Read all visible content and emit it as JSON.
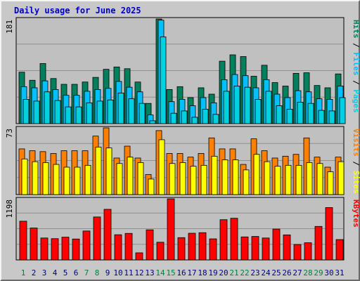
{
  "title": "Daily usage for June 2025",
  "colors": {
    "hits": "#00805c",
    "files": "#00c0ff",
    "pages": "#00d0e0",
    "visits": "#ff8000",
    "sites": "#ffff00",
    "kbytes": "#ff0000",
    "plot_bg": "#c0c0c0",
    "grid": "#909090",
    "weekend_label": "#008040",
    "weekday_label": "#000080"
  },
  "chart_data": [
    {
      "type": "bar",
      "name": "hits-files-pages",
      "categories": [
        "1",
        "2",
        "3",
        "4",
        "5",
        "6",
        "7",
        "8",
        "9",
        "10",
        "11",
        "12",
        "13",
        "14",
        "15",
        "16",
        "17",
        "18",
        "19",
        "20",
        "21",
        "22",
        "23",
        "24",
        "25",
        "26",
        "27",
        "28",
        "29",
        "30",
        "31"
      ],
      "weekend_days": [
        "1",
        "7",
        "8",
        "14",
        "15",
        "21",
        "22",
        "28",
        "29"
      ],
      "ymax_label": "181",
      "ylim": [
        0,
        181
      ],
      "legend": [
        "Hits",
        "Files",
        "Pages"
      ],
      "series": [
        {
          "name": "Hits",
          "color": "#00805c",
          "values": [
            89,
            75,
            104,
            78,
            68,
            68,
            72,
            80,
            94,
            98,
            95,
            72,
            35,
            181,
            59,
            64,
            45,
            62,
            51,
            108,
            119,
            116,
            82,
            101,
            71,
            65,
            87,
            88,
            66,
            62,
            86
          ]
        },
        {
          "name": "Files",
          "color": "#00c0ff",
          "values": [
            64,
            62,
            74,
            59,
            49,
            49,
            56,
            59,
            61,
            73,
            63,
            55,
            15,
            179,
            38,
            42,
            31,
            45,
            36,
            76,
            85,
            83,
            62,
            76,
            51,
            45,
            57,
            55,
            43,
            42,
            65
          ]
        },
        {
          "name": "Pages",
          "color": "#00d0e0",
          "values": [
            42,
            39,
            55,
            40,
            29,
            29,
            36,
            39,
            41,
            53,
            43,
            35,
            5,
            150,
            18,
            22,
            11,
            25,
            16,
            56,
            65,
            63,
            42,
            56,
            31,
            25,
            37,
            35,
            23,
            22,
            45
          ]
        }
      ]
    },
    {
      "type": "bar",
      "name": "visits-sites",
      "categories": [
        "1",
        "2",
        "3",
        "4",
        "5",
        "6",
        "7",
        "8",
        "9",
        "10",
        "11",
        "12",
        "13",
        "14",
        "15",
        "16",
        "17",
        "18",
        "19",
        "20",
        "21",
        "22",
        "23",
        "24",
        "25",
        "26",
        "27",
        "28",
        "29",
        "30",
        "31"
      ],
      "ymax_label": "73",
      "ylim": [
        0,
        73
      ],
      "legend": [
        "Visits",
        "Sites"
      ],
      "series": [
        {
          "name": "Visits",
          "color": "#ff8000",
          "values": [
            50,
            48,
            47,
            45,
            48,
            48,
            48,
            64,
            73,
            40,
            53,
            40,
            22,
            70,
            45,
            45,
            41,
            45,
            62,
            50,
            50,
            33,
            61,
            48,
            40,
            42,
            44,
            62,
            41,
            30,
            41
          ]
        },
        {
          "name": "Sites",
          "color": "#ffff00",
          "values": [
            39,
            36,
            35,
            33,
            30,
            30,
            32,
            52,
            51,
            34,
            41,
            35,
            17,
            60,
            34,
            35,
            31,
            32,
            42,
            38,
            38,
            27,
            44,
            36,
            31,
            32,
            32,
            35,
            34,
            25,
            36
          ]
        }
      ]
    },
    {
      "type": "bar",
      "name": "kbytes",
      "categories": [
        "1",
        "2",
        "3",
        "4",
        "5",
        "6",
        "7",
        "8",
        "9",
        "10",
        "11",
        "12",
        "13",
        "14",
        "15",
        "16",
        "17",
        "18",
        "19",
        "20",
        "21",
        "22",
        "23",
        "24",
        "25",
        "26",
        "27",
        "28",
        "29",
        "30",
        "31"
      ],
      "ymax_label": "1198",
      "ylim": [
        0,
        1198
      ],
      "legend": [
        "KBytes"
      ],
      "series": [
        {
          "name": "KBytes",
          "color": "#ff0000",
          "values": [
            759,
            626,
            430,
            417,
            446,
            410,
            567,
            842,
            992,
            494,
            520,
            139,
            590,
            347,
            1198,
            437,
            523,
            534,
            413,
            789,
            817,
            451,
            460,
            430,
            605,
            491,
            303,
            337,
            657,
            1026,
            399
          ]
        }
      ]
    }
  ]
}
